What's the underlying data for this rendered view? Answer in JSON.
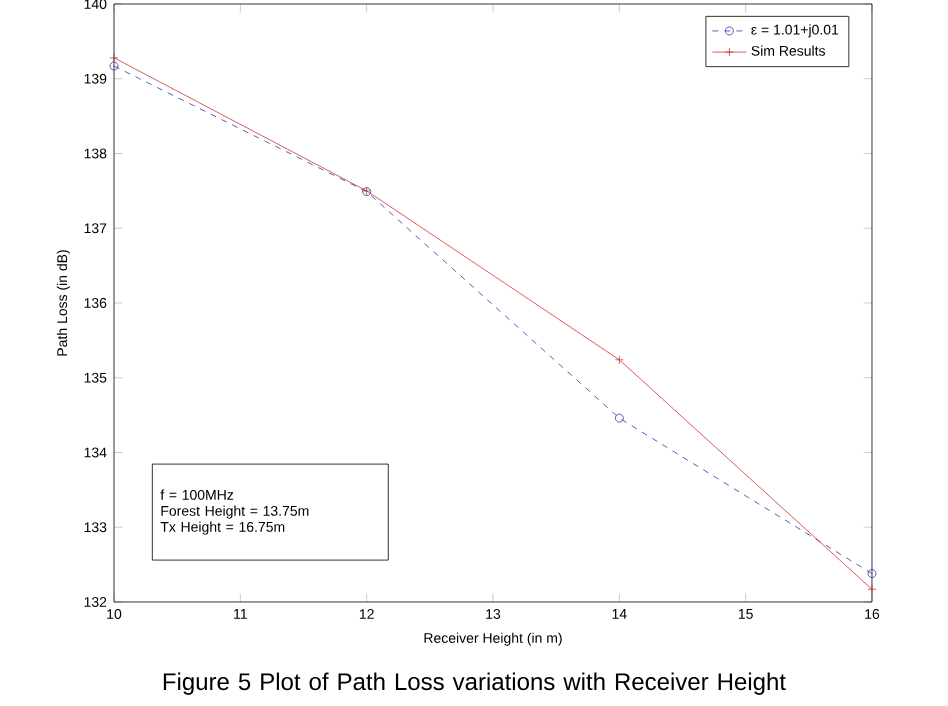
{
  "chart_data": {
    "type": "line",
    "xlabel": "Receiver Height (in m)",
    "ylabel": "Path Loss (in dB)",
    "x": [
      10,
      12,
      14,
      16
    ],
    "series": [
      {
        "name": "ε = 1.01+j0.01",
        "color": "#3333aa",
        "values": [
          139.17,
          137.49,
          134.46,
          132.38
        ],
        "marker": "circle",
        "line_style": "dashed"
      },
      {
        "name": "Sim Results",
        "color": "#cc3333",
        "values": [
          139.28,
          137.5,
          135.24,
          132.17
        ],
        "marker": "cross",
        "line_style": "solid"
      }
    ],
    "xlim": [
      10,
      16
    ],
    "xticks": [
      10,
      11,
      12,
      13,
      14,
      15,
      16
    ],
    "ylim": [
      132,
      140
    ],
    "yticks": [
      132,
      133,
      134,
      135,
      136,
      137,
      138,
      139,
      140
    ],
    "legend": "top right",
    "grid": false,
    "annotations": [
      "f = 100MHz",
      "Forest Height = 13.75m",
      "Tx Height = 16.75m",
      "Figure 5 Plot of Path Loss variations with Receiver Height"
    ]
  }
}
